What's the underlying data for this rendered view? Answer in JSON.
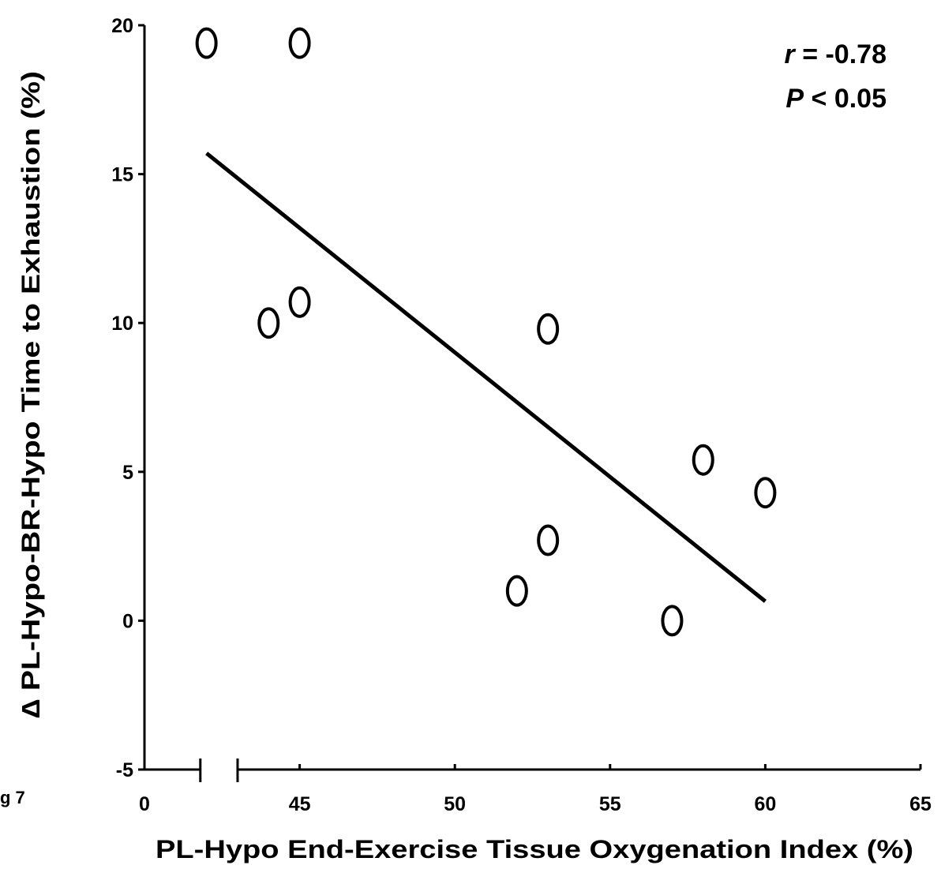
{
  "chart_data": {
    "type": "scatter",
    "x_label": "PL-Hypo End-Exercise Tissue Oxygenation Index (%)",
    "y_label": "∆ PL-Hypo-BR-Hypo Time to Exhaustion (%)",
    "figure_label": "g 7",
    "annotations": [
      {
        "symbol": "r",
        "text": "= -0.78"
      },
      {
        "symbol": "P",
        "text": "< 0.05"
      }
    ],
    "x": [
      42,
      45,
      44,
      45,
      53,
      58,
      60,
      53,
      52,
      57
    ],
    "y": [
      19.4,
      19.4,
      10,
      10.7,
      9.8,
      5.4,
      4.3,
      2.7,
      1.0,
      0
    ],
    "color": "#000000",
    "trend_line": {
      "x": [
        42,
        60
      ],
      "y": [
        15.7,
        0.65
      ]
    },
    "xlim": [
      40,
      65
    ],
    "xticks": [
      {
        "value": 40,
        "label": "0"
      },
      45,
      50,
      55,
      60,
      65
    ],
    "x_axis_break": [
      41.8,
      43
    ],
    "ylim": [
      -5,
      20
    ],
    "yticks": [
      -5,
      0,
      5,
      10,
      15,
      20
    ]
  }
}
